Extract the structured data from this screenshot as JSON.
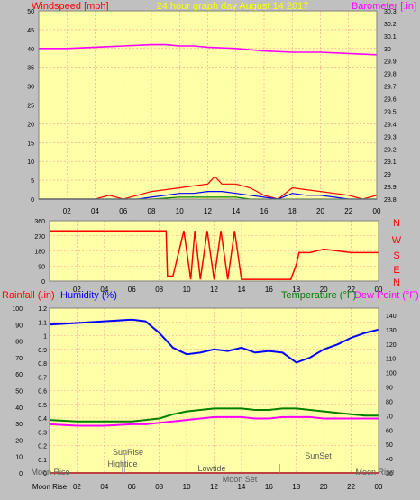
{
  "header": {
    "left_label": "Windspeed [mph]",
    "center_label": "24 hour graph day   August 14 2017",
    "right_label": "Barometer [.in]"
  },
  "middle": {
    "compass_labels": [
      "N",
      "W",
      "S",
      "E",
      "N"
    ]
  },
  "bottom": {
    "rainfall_label": "Rainfall (.in)",
    "humidity_label": "Humidity (%)",
    "temperature_label": "Temperature (°F)",
    "dewpoint_label": "Dew Point (°F)"
  },
  "events": {
    "sunrise": "SunRise",
    "hightide": "Hightide",
    "lowtide": "Lowtide",
    "sunset": "SunSet",
    "moonset": "Moon Set",
    "moonrise": "Moon Rise",
    "moonrise_left": "Moon Rise",
    "moonrise_right": "Moon Rise",
    "sunset_bottom": "SunSet"
  },
  "colors": {
    "plot_bg": "#ffffa8",
    "frame_bg": "#c0c0c0",
    "grid": "#ff9999",
    "header_text": "#ff0000",
    "center_text": "#ffff00",
    "barometer": "#ff00ff",
    "wind_gust": "#ff0000",
    "wind_avg": "#0000ff",
    "wind_low": "#008000",
    "direction": "#ff0000",
    "humidity": "#0000ff",
    "temperature": "#008000",
    "dew_point": "#ff00ff",
    "rain": "#ff0000"
  },
  "chart_data": [
    {
      "type": "line",
      "title": "24 hour graph day   August 14 2017",
      "ylabel": "Windspeed [mph]",
      "y2label": "Barometer [.in]",
      "x_ticks": [
        "02",
        "04",
        "06",
        "08",
        "10",
        "12",
        "14",
        "16",
        "18",
        "20",
        "22",
        "00"
      ],
      "ylim": [
        0,
        50
      ],
      "y_ticks": [
        0,
        5,
        10,
        15,
        20,
        25,
        30,
        35,
        40,
        45,
        50
      ],
      "y2lim": [
        28.8,
        30.3
      ],
      "y2_ticks": [
        "28.8",
        "28.9",
        "29",
        "29.1",
        "29.2",
        "29.3",
        "29.4",
        "29.5",
        "29.6",
        "29.7",
        "29.8",
        "29.9",
        "30",
        "30.1",
        "30.2",
        "30.3"
      ],
      "grid": true,
      "series": [
        {
          "axis": "right",
          "x": [
            0,
            2,
            4,
            6,
            8,
            9,
            10,
            11,
            12,
            14,
            16,
            18,
            20,
            22,
            24
          ],
          "values": [
            30.0,
            30.0,
            30.01,
            30.02,
            30.03,
            30.03,
            30.02,
            30.02,
            30.01,
            30.0,
            29.98,
            29.97,
            29.97,
            29.96,
            29.95
          ]
        },
        {
          "x": [
            0,
            4,
            5,
            6,
            7,
            8,
            9,
            10,
            11,
            12,
            12.5,
            13,
            14,
            15,
            16,
            17,
            18,
            19,
            20,
            21,
            22,
            23,
            24
          ],
          "values": [
            0,
            0,
            1,
            0,
            1,
            2,
            2.5,
            3,
            3.5,
            4,
            6,
            4,
            4,
            3,
            1,
            0,
            3,
            2.5,
            2,
            1.5,
            1,
            0,
            1
          ]
        },
        {
          "x": [
            0,
            7,
            8,
            9,
            10,
            11,
            12,
            13,
            14,
            15,
            16,
            17,
            18,
            19,
            20,
            21,
            22,
            24
          ],
          "values": [
            0,
            0,
            0.5,
            1,
            1.5,
            1.5,
            2,
            2,
            1.5,
            1,
            0.5,
            0,
            1.5,
            1,
            1,
            0.5,
            0,
            0
          ]
        },
        {
          "x": [
            0,
            8,
            10,
            12,
            14,
            15,
            16,
            24
          ],
          "values": [
            0,
            0,
            0.5,
            0.5,
            0.5,
            0,
            0,
            0
          ]
        }
      ]
    },
    {
      "type": "line",
      "x_ticks": [
        "02",
        "04",
        "06",
        "08",
        "10",
        "12",
        "14",
        "16",
        "18",
        "20",
        "22",
        "00"
      ],
      "ylim": [
        0,
        360
      ],
      "y_ticks": [
        0,
        90,
        180,
        270,
        360
      ],
      "series": [
        {
          "x": [
            0,
            8.5,
            8.6,
            9,
            9.8,
            10.3,
            10.6,
            11,
            11.5,
            12,
            12.5,
            13,
            13.5,
            14,
            14.3,
            15,
            16,
            17,
            17.6,
            18,
            18.2,
            19,
            20,
            21,
            22,
            24
          ],
          "values": [
            300,
            300,
            30,
            30,
            300,
            10,
            300,
            10,
            300,
            10,
            300,
            10,
            300,
            10,
            10,
            10,
            10,
            10,
            10,
            100,
            170,
            170,
            190,
            180,
            170,
            170
          ]
        }
      ]
    },
    {
      "type": "line",
      "y_left_ticks": [
        "0",
        "0.1",
        "0.2",
        "0.3",
        "0.4",
        "0.5",
        "0.6",
        "0.7",
        "0.8",
        "0.9",
        "1",
        "1.1",
        "1.2"
      ],
      "y_outer_ticks": [
        "0",
        "10",
        "20",
        "30",
        "40",
        "50",
        "60",
        "70",
        "80",
        "90",
        "100"
      ],
      "y_right_ticks": [
        "30",
        "40",
        "50",
        "60",
        "70",
        "80",
        "90",
        "100",
        "110",
        "120",
        "130",
        "140"
      ],
      "x_ticks": [
        "Moon Rise",
        "02",
        "04",
        "06",
        "08",
        "10",
        "12",
        "14",
        "16",
        "18",
        "20",
        "22",
        "00"
      ],
      "y2lim": [
        30,
        145
      ],
      "series": [
        {
          "name": "Humidity (%)",
          "axis": "outer",
          "x": [
            0,
            2,
            4,
            6,
            7,
            8,
            9,
            10,
            11,
            12,
            13,
            14,
            15,
            16,
            17,
            18,
            19,
            20,
            21,
            22,
            23,
            24
          ],
          "values": [
            90,
            91,
            92,
            93,
            92,
            85,
            76,
            72,
            73,
            75,
            74,
            76,
            73,
            74,
            73,
            67,
            70,
            75,
            78,
            82,
            85,
            87
          ]
        },
        {
          "name": "Temperature (°F)",
          "axis": "right",
          "x": [
            0,
            2,
            4,
            6,
            7,
            8,
            9,
            10,
            11,
            12,
            13,
            14,
            15,
            16,
            17,
            18,
            19,
            20,
            21,
            22,
            23,
            24
          ],
          "values": [
            67,
            66,
            66,
            66,
            67,
            68,
            71,
            73,
            74,
            75,
            75,
            75,
            74,
            74,
            75,
            75,
            74,
            73,
            72,
            71,
            70,
            70
          ]
        },
        {
          "name": "Dew Point (°F)",
          "axis": "right",
          "x": [
            0,
            2,
            4,
            6,
            7,
            8,
            9,
            10,
            11,
            12,
            13,
            14,
            15,
            16,
            17,
            18,
            19,
            20,
            21,
            22,
            23,
            24
          ],
          "values": [
            64,
            63,
            63,
            64,
            64,
            65,
            66,
            67,
            68,
            69,
            69,
            69,
            68,
            68,
            69,
            69,
            69,
            68,
            68,
            68,
            68,
            68
          ]
        },
        {
          "name": "Rainfall (.in)",
          "axis": "left",
          "x": [
            0,
            24
          ],
          "values": [
            0,
            0
          ]
        }
      ]
    }
  ]
}
